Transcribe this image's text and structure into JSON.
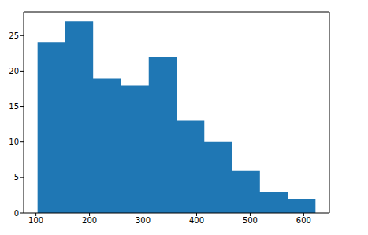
{
  "chart_data": {
    "type": "histogram",
    "bins": [
      103,
      154.9,
      206.8,
      258.7,
      310.6,
      362.5,
      414.4,
      466.3,
      518.2,
      570.1,
      622
    ],
    "values": [
      24,
      27,
      19,
      18,
      22,
      13,
      10,
      6,
      3,
      2
    ],
    "color": "#1f77b4",
    "xlim": [
      77,
      648
    ],
    "xticks": [
      100,
      200,
      300,
      400,
      500,
      600
    ],
    "ylim": [
      0,
      28.35
    ],
    "yticks": [
      0,
      5,
      10,
      15,
      20,
      25
    ],
    "grid": true
  }
}
